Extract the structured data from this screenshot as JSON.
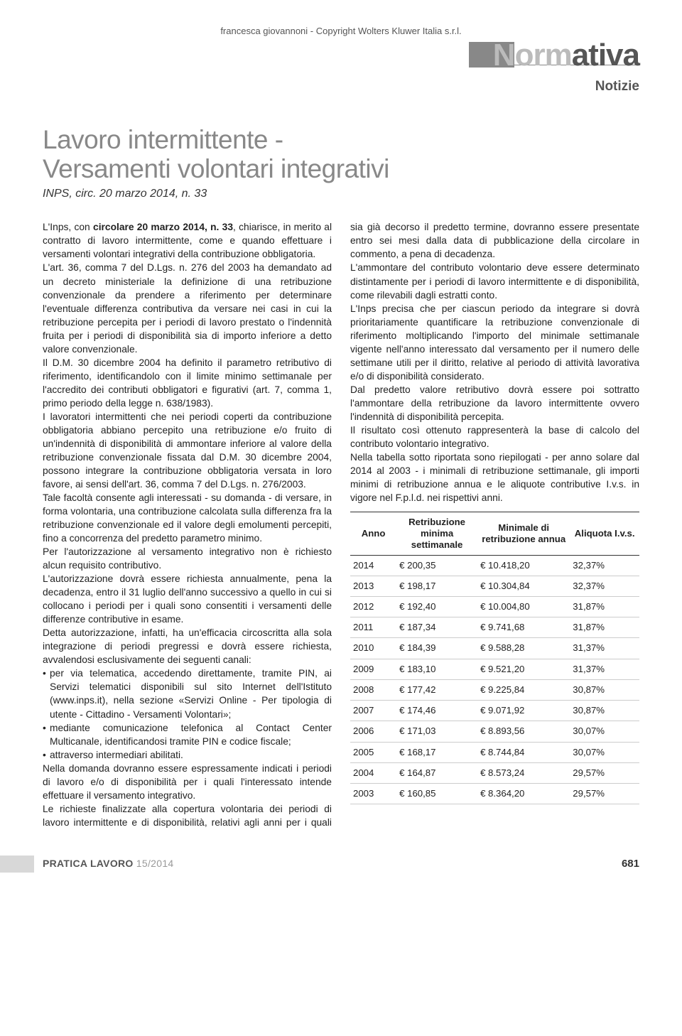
{
  "copyright": "francesca giovannoni - Copyright Wolters Kluwer Italia s.r.l.",
  "masthead": {
    "category_light": "Norm",
    "category_dark": "ativa",
    "subcategory": "Notizie"
  },
  "title_line1": "Lavoro intermittente -",
  "title_line2": "Versamenti volontari integrativi",
  "source": "INPS, circ. 20 marzo 2014, n. 33",
  "col1": {
    "p1a": "L'Inps, con ",
    "p1b_bold": "circolare 20 marzo 2014, n. 33",
    "p1c": ", chiarisce, in merito al contratto di lavoro intermittente, come e quando effettuare i versamenti volontari integrativi della contribuzione obbligatoria.",
    "p2": "L'art. 36, comma 7 del D.Lgs. n. 276 del 2003 ha demandato ad un decreto ministeriale la definizione di una retribuzione convenzionale da prendere a riferimento per determinare l'eventuale differenza contributiva da versare nei casi in cui la retribuzione percepita per i periodi di lavoro prestato o l'indennità fruita per i periodi di disponibilità sia di importo inferiore a detto valore convenzionale.",
    "p3": "Il D.M. 30 dicembre 2004 ha definito il parametro retributivo di riferimento, identificandolo con il limite minimo settimanale per l'accredito dei contributi obbligatori e figurativi (art. 7, comma 1, primo periodo della legge n. 638/1983).",
    "p4": "I lavoratori intermittenti che nei periodi coperti da contribuzione obbligatoria abbiano percepito una retribuzione e/o fruito di un'indennità di disponibilità di ammontare inferiore al valore della retribuzione convenzionale fissata dal D.M. 30 dicembre 2004, possono integrare la contribuzione obbligatoria versata in loro favore, ai sensi dell'art. 36, comma 7 del D.Lgs. n. 276/2003.",
    "p5": "Tale facoltà consente agli interessati - su domanda - di versare, in forma volontaria, una contribuzione calcolata sulla differenza fra la retribuzione convenzionale ed il valore degli emolumenti percepiti, fino a concorrenza del predetto parametro minimo.",
    "p6": "Per l'autorizzazione al versamento integrativo non è richiesto alcun requisito contributivo.",
    "p7": "L'autorizzazione dovrà essere richiesta annualmente, pena la decadenza, entro il 31 luglio dell'anno successivo a quello in cui si collocano i periodi per i quali sono consentiti i versamenti delle differenze contributive in esame.",
    "p8": "Detta autorizzazione, infatti, ha un'efficacia circoscritta alla sola integrazione di periodi pregressi e dovrà essere richiesta, avvalendosi esclusivamente dei seguenti canali:",
    "bullet1": "per via telematica, accedendo direttamente, tramite PIN, ai Servizi telematici disponibili sul sito Internet dell'Istituto (www.inps.it), nella sezione «Servizi Online - Per tipologia di utente - Cittadino - Versamenti Volontari»;",
    "bullet2": "mediante comunicazione telefonica al Contact Center Multicanale, identificandosi tramite PIN e codice fiscale;",
    "bullet3": "attraverso intermediari abilitati."
  },
  "col2": {
    "p1": "Nella domanda dovranno essere espressamente indicati i periodi di lavoro e/o di disponibilità per i quali l'interessato intende effettuare il versamento integrativo.",
    "p2": "Le richieste finalizzate alla copertura volontaria dei periodi di lavoro intermittente e di disponibilità, relativi agli anni per i quali sia già decorso il predetto termine, dovranno essere presentate entro sei mesi dalla data di pubblicazione della circolare in commento, a pena di decadenza.",
    "p3": "L'ammontare del contributo volontario deve essere determinato distintamente per i periodi di lavoro intermittente e di disponibilità, come rilevabili dagli estratti conto.",
    "p4": "L'Inps precisa che per ciascun periodo da integrare si dovrà prioritariamente quantificare la retribuzione convenzionale di riferimento moltiplicando l'importo del minimale settimanale vigente nell'anno interessato dal versamento per il numero delle settimane utili per il diritto, relative al periodo di attività lavorativa e/o di disponibilità considerato.",
    "p5": "Dal predetto valore retributivo dovrà essere poi sottratto l'ammontare della retribuzione da lavoro intermittente ovvero l'indennità di disponibilità percepita.",
    "p6": "Il risultato così ottenuto rappresenterà la base di calcolo del contributo volontario integrativo.",
    "p7": "Nella tabella sotto riportata sono riepilogati - per anno solare dal 2014 al 2003 - i minimali di retribuzione settimanale, gli importi minimi di retribuzione annua e le aliquote contributive I.v.s. in vigore nel F.p.l.d. nei rispettivi anni."
  },
  "table": {
    "headers": {
      "h1": "Anno",
      "h2": "Retribuzione minima settimanale",
      "h3": "Minimale di retribuzione annua",
      "h4": "Aliquota I.v.s."
    },
    "rows": [
      [
        "2014",
        "€ 200,35",
        "€ 10.418,20",
        "32,37%"
      ],
      [
        "2013",
        "€ 198,17",
        "€ 10.304,84",
        "32,37%"
      ],
      [
        "2012",
        "€ 192,40",
        "€ 10.004,80",
        "31,87%"
      ],
      [
        "2011",
        "€ 187,34",
        "€ 9.741,68",
        "31,87%"
      ],
      [
        "2010",
        "€ 184,39",
        "€ 9.588,28",
        "31,37%"
      ],
      [
        "2009",
        "€ 183,10",
        "€ 9.521,20",
        "31,37%"
      ],
      [
        "2008",
        "€ 177,42",
        "€ 9.225,84",
        "30,87%"
      ],
      [
        "2007",
        "€ 174,46",
        "€ 9.071,92",
        "30,87%"
      ],
      [
        "2006",
        "€ 171,03",
        "€ 8.893,56",
        "30,07%"
      ],
      [
        "2005",
        "€ 168,17",
        "€ 8.744,84",
        "30,07%"
      ],
      [
        "2004",
        "€ 164,87",
        "€ 8.573,24",
        "29,57%"
      ],
      [
        "2003",
        "€ 160,85",
        "€ 8.364,20",
        "29,57%"
      ]
    ]
  },
  "footer": {
    "magazine": "PRATICA LAVORO",
    "issue": " 15/2014",
    "page": "681"
  }
}
